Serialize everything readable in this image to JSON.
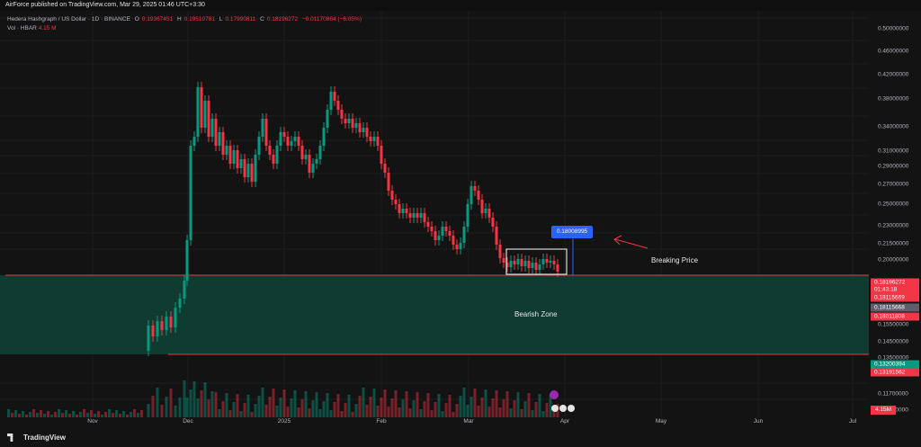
{
  "header": {
    "text": "AirForce published on TradingView.com, Mar 29, 2025 01:46 UTC+3:30"
  },
  "legend": {
    "symbol": "Hedera Hashgraph / US Dollar · 1D · BINANCE",
    "o_label": "O",
    "o_value": "0.19367451",
    "h_label": "H",
    "h_value": "0.19510781",
    "l_label": "L",
    "l_value": "0.17990811",
    "c_label": "C",
    "c_value": "0.18196272",
    "change": "−0.01170864 (−6.05%)",
    "vol_label": "Vol · HBAR",
    "vol_value": "4.15 M"
  },
  "yaxis": {
    "labels": [
      "0.50000000",
      "0.46000000",
      "0.42000000",
      "0.38000000",
      "0.34000000",
      "0.31000000",
      "0.29000000",
      "0.27000000",
      "0.25000000",
      "0.23000000",
      "0.21500000",
      "0.20000000",
      "0.15500000",
      "0.14500000",
      "0.13500000",
      "0.11700000",
      "0.11000000"
    ],
    "tags": [
      {
        "text": "0.18196272",
        "color": "#f23645"
      },
      {
        "text": "01:43:18",
        "color": "#f23645"
      },
      {
        "text": "0.18115669",
        "color": "#f23645"
      },
      {
        "text": "0.18115668",
        "color": "#5d606b"
      },
      {
        "text": "0.18011808",
        "color": "#f23645"
      },
      {
        "text": "0.13200394",
        "color": "#089981"
      },
      {
        "text": "0.13191562",
        "color": "#f23645"
      }
    ],
    "vol_tag": "4.15M"
  },
  "xaxis": {
    "labels": [
      "Nov",
      "Dec",
      "2025",
      "Feb",
      "Mar",
      "Apr",
      "May",
      "Jun",
      "Jul"
    ]
  },
  "annotations": {
    "zone_label": "Bearish Zone",
    "breaking_label": "Breaking Price",
    "price_box": "0.18008995"
  },
  "footer": {
    "brand": "TradingView"
  },
  "colors": {
    "up": "#089981",
    "down": "#f23645",
    "zone": "#0f3d33",
    "line": "#f23645",
    "accent": "#2962ff"
  }
}
